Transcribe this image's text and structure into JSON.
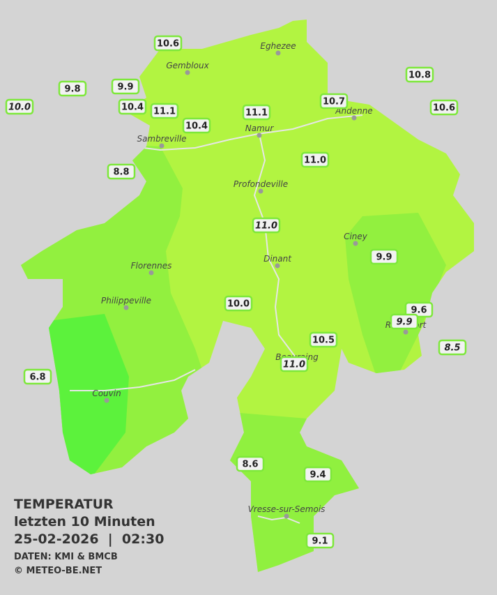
{
  "header": {
    "title": "TEMPERATUR",
    "subtitle": "letzten 10 Minuten",
    "timestamp": "25-02-2026  |  02:30",
    "source": "DATEN: KMI & BMCB",
    "copyright": "© METEO-BE.NET"
  },
  "towns": [
    {
      "name": "Eghezee"
    },
    {
      "name": "Gembloux"
    },
    {
      "name": "Andenne"
    },
    {
      "name": "Namur"
    },
    {
      "name": "Sambreville"
    },
    {
      "name": "Profondeville"
    },
    {
      "name": "Ciney"
    },
    {
      "name": "Dinant"
    },
    {
      "name": "Florennes"
    },
    {
      "name": "Philippeville"
    },
    {
      "name": "Rochefort"
    },
    {
      "name": "Beauraing"
    },
    {
      "name": "Couvin"
    },
    {
      "name": "Vresse-sur-Semois"
    }
  ],
  "stations": [
    {
      "value": "10.6",
      "italic": false
    },
    {
      "value": "9.8",
      "italic": false
    },
    {
      "value": "9.9",
      "italic": false
    },
    {
      "value": "10.0",
      "italic": true
    },
    {
      "value": "10.4",
      "italic": false
    },
    {
      "value": "11.1",
      "italic": false
    },
    {
      "value": "10.4",
      "italic": false
    },
    {
      "value": "11.1",
      "italic": false
    },
    {
      "value": "10.7",
      "italic": false
    },
    {
      "value": "10.8",
      "italic": false
    },
    {
      "value": "10.6",
      "italic": false
    },
    {
      "value": "8.8",
      "italic": false
    },
    {
      "value": "11.0",
      "italic": false
    },
    {
      "value": "11.0",
      "italic": true
    },
    {
      "value": "9.9",
      "italic": false
    },
    {
      "value": "10.0",
      "italic": false
    },
    {
      "value": "9.6",
      "italic": false
    },
    {
      "value": "9.9",
      "italic": true
    },
    {
      "value": "8.5",
      "italic": true
    },
    {
      "value": "10.5",
      "italic": false
    },
    {
      "value": "11.0",
      "italic": true
    },
    {
      "value": "6.8",
      "italic": false
    },
    {
      "value": "8.6",
      "italic": false
    },
    {
      "value": "9.4",
      "italic": false
    },
    {
      "value": "9.1",
      "italic": false
    }
  ]
}
